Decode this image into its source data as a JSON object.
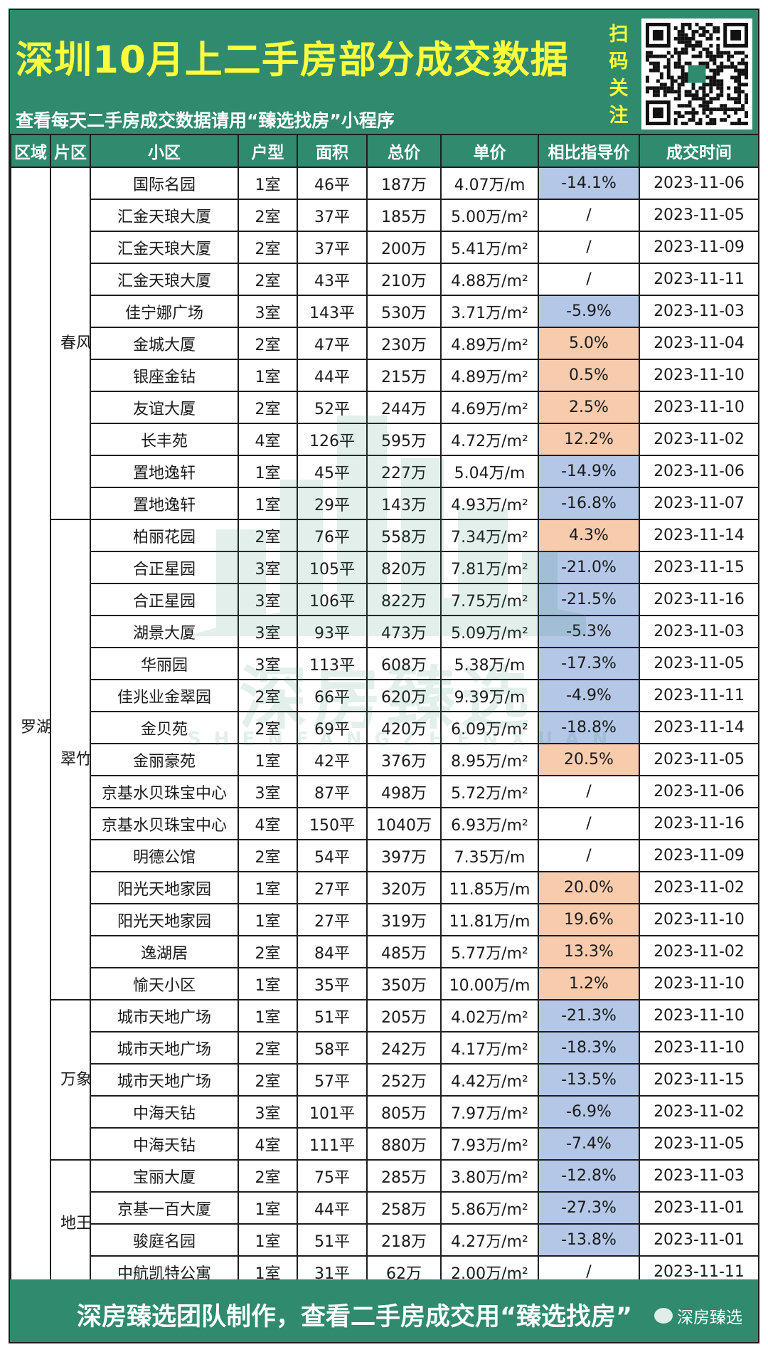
{
  "header": {
    "title": "深圳10月上二手房部分成交数据",
    "subtitle": "查看每天二手房成交数据请用“臻选找房”小程序",
    "scan_chars": [
      "扫",
      "码",
      "关",
      "注"
    ]
  },
  "watermark": {
    "text": "深房臻选",
    "sub": "SHENFANGZHENXUAN"
  },
  "colors": {
    "header_bg": "#2f8a6e",
    "title_yellow": "#ffff3c",
    "negative_cell": "#b4c7e7",
    "positive_cell": "#f8cbad"
  },
  "table": {
    "columns": [
      "区域",
      "片区",
      "小区",
      "户型",
      "面积",
      "总价",
      "单价",
      "相比指导价",
      "成交时间"
    ],
    "district": "罗湖区",
    "areas": [
      {
        "name": "春风路",
        "rows": [
          {
            "community": "国际名园",
            "layout": "1室",
            "size": "46平",
            "total": "187万",
            "unit": "4.07万/m",
            "vs_guide": "-14.1%",
            "date": "2023-11-06"
          },
          {
            "community": "汇金天琅大厦",
            "layout": "2室",
            "size": "37平",
            "total": "185万",
            "unit": "5.00万/m²",
            "vs_guide": "/",
            "date": "2023-11-05"
          },
          {
            "community": "汇金天琅大厦",
            "layout": "2室",
            "size": "37平",
            "total": "200万",
            "unit": "5.41万/m²",
            "vs_guide": "/",
            "date": "2023-11-09"
          },
          {
            "community": "汇金天琅大厦",
            "layout": "2室",
            "size": "43平",
            "total": "210万",
            "unit": "4.88万/m²",
            "vs_guide": "/",
            "date": "2023-11-11"
          },
          {
            "community": "佳宁娜广场",
            "layout": "3室",
            "size": "143平",
            "total": "530万",
            "unit": "3.71万/m²",
            "vs_guide": "-5.9%",
            "date": "2023-11-03"
          },
          {
            "community": "金城大厦",
            "layout": "2室",
            "size": "47平",
            "total": "230万",
            "unit": "4.89万/m²",
            "vs_guide": "5.0%",
            "date": "2023-11-04"
          },
          {
            "community": "银座金钻",
            "layout": "1室",
            "size": "44平",
            "total": "215万",
            "unit": "4.89万/m²",
            "vs_guide": "0.5%",
            "date": "2023-11-10"
          },
          {
            "community": "友谊大厦",
            "layout": "2室",
            "size": "52平",
            "total": "244万",
            "unit": "4.69万/m²",
            "vs_guide": "2.5%",
            "date": "2023-11-10"
          },
          {
            "community": "长丰苑",
            "layout": "4室",
            "size": "126平",
            "total": "595万",
            "unit": "4.72万/m²",
            "vs_guide": "12.2%",
            "date": "2023-11-02"
          },
          {
            "community": "置地逸轩",
            "layout": "1室",
            "size": "45平",
            "total": "227万",
            "unit": "5.04万/m",
            "vs_guide": "-14.9%",
            "date": "2023-11-06"
          },
          {
            "community": "置地逸轩",
            "layout": "1室",
            "size": "29平",
            "total": "143万",
            "unit": "4.93万/m²",
            "vs_guide": "-16.8%",
            "date": "2023-11-07"
          }
        ]
      },
      {
        "name": "翠竹",
        "rows": [
          {
            "community": "柏丽花园",
            "layout": "2室",
            "size": "76平",
            "total": "558万",
            "unit": "7.34万/m²",
            "vs_guide": "4.3%",
            "date": "2023-11-14"
          },
          {
            "community": "合正星园",
            "layout": "3室",
            "size": "105平",
            "total": "820万",
            "unit": "7.81万/m²",
            "vs_guide": "-21.0%",
            "date": "2023-11-15"
          },
          {
            "community": "合正星园",
            "layout": "3室",
            "size": "106平",
            "total": "822万",
            "unit": "7.75万/m²",
            "vs_guide": "-21.5%",
            "date": "2023-11-16"
          },
          {
            "community": "湖景大厦",
            "layout": "3室",
            "size": "93平",
            "total": "473万",
            "unit": "5.09万/m²",
            "vs_guide": "-5.3%",
            "date": "2023-11-03"
          },
          {
            "community": "华丽园",
            "layout": "3室",
            "size": "113平",
            "total": "608万",
            "unit": "5.38万/m",
            "vs_guide": "-17.3%",
            "date": "2023-11-05"
          },
          {
            "community": "佳兆业金翠园",
            "layout": "2室",
            "size": "66平",
            "total": "620万",
            "unit": "9.39万/m",
            "vs_guide": "-4.9%",
            "date": "2023-11-11"
          },
          {
            "community": "金贝苑",
            "layout": "2室",
            "size": "69平",
            "total": "420万",
            "unit": "6.09万/m²",
            "vs_guide": "-18.8%",
            "date": "2023-11-14"
          },
          {
            "community": "金丽豪苑",
            "layout": "1室",
            "size": "42平",
            "total": "376万",
            "unit": "8.95万/m²",
            "vs_guide": "20.5%",
            "date": "2023-11-05"
          },
          {
            "community": "京基水贝珠宝中心",
            "layout": "3室",
            "size": "87平",
            "total": "498万",
            "unit": "5.72万/m²",
            "vs_guide": "/",
            "date": "2023-11-06"
          },
          {
            "community": "京基水贝珠宝中心",
            "layout": "4室",
            "size": "150平",
            "total": "1040万",
            "unit": "6.93万/m²",
            "vs_guide": "/",
            "date": "2023-11-16"
          },
          {
            "community": "明德公馆",
            "layout": "2室",
            "size": "54平",
            "total": "397万",
            "unit": "7.35万/m",
            "vs_guide": "/",
            "date": "2023-11-09"
          },
          {
            "community": "阳光天地家园",
            "layout": "1室",
            "size": "27平",
            "total": "320万",
            "unit": "11.85万/m",
            "vs_guide": "20.0%",
            "date": "2023-11-02"
          },
          {
            "community": "阳光天地家园",
            "layout": "1室",
            "size": "27平",
            "total": "319万",
            "unit": "11.81万/m",
            "vs_guide": "19.6%",
            "date": "2023-11-10"
          },
          {
            "community": "逸湖居",
            "layout": "2室",
            "size": "84平",
            "total": "485万",
            "unit": "5.77万/m²",
            "vs_guide": "13.3%",
            "date": "2023-11-02"
          },
          {
            "community": "愉天小区",
            "layout": "1室",
            "size": "35平",
            "total": "350万",
            "unit": "10.00万/m",
            "vs_guide": "1.2%",
            "date": "2023-11-10"
          }
        ]
      },
      {
        "name": "万象城",
        "rows": [
          {
            "community": "城市天地广场",
            "layout": "1室",
            "size": "51平",
            "total": "205万",
            "unit": "4.02万/m²",
            "vs_guide": "-21.3%",
            "date": "2023-11-10"
          },
          {
            "community": "城市天地广场",
            "layout": "2室",
            "size": "58平",
            "total": "242万",
            "unit": "4.17万/m²",
            "vs_guide": "-18.3%",
            "date": "2023-11-10"
          },
          {
            "community": "城市天地广场",
            "layout": "2室",
            "size": "57平",
            "total": "252万",
            "unit": "4.42万/m²",
            "vs_guide": "-13.5%",
            "date": "2023-11-15"
          },
          {
            "community": "中海天钻",
            "layout": "3室",
            "size": "101平",
            "total": "805万",
            "unit": "7.97万/m²",
            "vs_guide": "-6.9%",
            "date": "2023-11-02"
          },
          {
            "community": "中海天钻",
            "layout": "4室",
            "size": "111平",
            "total": "880万",
            "unit": "7.93万/m²",
            "vs_guide": "-7.4%",
            "date": "2023-11-05"
          }
        ]
      },
      {
        "name": "地王",
        "rows": [
          {
            "community": "宝丽大厦",
            "layout": "2室",
            "size": "75平",
            "total": "285万",
            "unit": "3.80万/m²",
            "vs_guide": "-12.8%",
            "date": "2023-11-03"
          },
          {
            "community": "京基一百大厦",
            "layout": "1室",
            "size": "44平",
            "total": "258万",
            "unit": "5.86万/m²",
            "vs_guide": "-27.3%",
            "date": "2023-11-01"
          },
          {
            "community": "骏庭名园",
            "layout": "1室",
            "size": "51平",
            "total": "218万",
            "unit": "4.27万/m²",
            "vs_guide": "-13.8%",
            "date": "2023-11-01"
          },
          {
            "community": "中航凯特公寓",
            "layout": "1室",
            "size": "31平",
            "total": "62万",
            "unit": "2.00万/m²",
            "vs_guide": "/",
            "date": "2023-11-11"
          }
        ]
      }
    ]
  },
  "footer": {
    "text": "深房臻选团队制作，查看二手房成交用“臻选找房”",
    "brand": "深房臻选"
  }
}
